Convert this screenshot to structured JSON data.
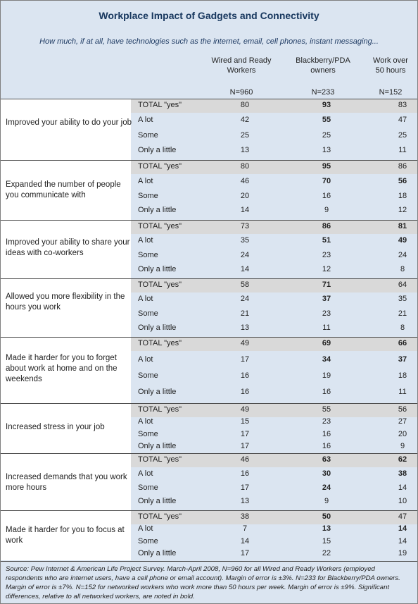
{
  "title": "Workplace Impact of Gadgets and Connectivity",
  "subtitle": "How much, if at all, have technologies such as the internet, email, cell phones, instant messaging...",
  "columns": [
    {
      "label_line1": "Wired and Ready",
      "label_line2": "Workers",
      "n": "N=960"
    },
    {
      "label_line1": "Blackberry/PDA",
      "label_line2": "owners",
      "n": "N=233"
    },
    {
      "label_line1": "Work over",
      "label_line2": "50 hours",
      "n": "N=152"
    }
  ],
  "rows": [
    {
      "question": "Improved your ability to do your job",
      "lines": [
        {
          "label": "TOTAL \"yes\"",
          "values": [
            "80",
            "93",
            "83"
          ],
          "bold": [
            false,
            true,
            false
          ]
        },
        {
          "label": "A lot",
          "values": [
            "42",
            "55",
            "47"
          ],
          "bold": [
            false,
            true,
            false
          ]
        },
        {
          "label": "Some",
          "values": [
            "25",
            "25",
            "25"
          ],
          "bold": [
            false,
            false,
            false
          ]
        },
        {
          "label": "Only a little",
          "values": [
            "13",
            "13",
            "11"
          ],
          "bold": [
            false,
            false,
            false
          ]
        }
      ]
    },
    {
      "question": "Expanded the number of people you communicate with",
      "lines": [
        {
          "label": "TOTAL \"yes\"",
          "values": [
            "80",
            "95",
            "86"
          ],
          "bold": [
            false,
            true,
            false
          ]
        },
        {
          "label": "A lot",
          "values": [
            "46",
            "70",
            "56"
          ],
          "bold": [
            false,
            true,
            true
          ]
        },
        {
          "label": "Some",
          "values": [
            "20",
            "16",
            "18"
          ],
          "bold": [
            false,
            false,
            false
          ]
        },
        {
          "label": "Only a little",
          "values": [
            "14",
            "9",
            "12"
          ],
          "bold": [
            false,
            false,
            false
          ]
        }
      ]
    },
    {
      "question": "Improved your ability to share your ideas with co-workers",
      "lines": [
        {
          "label": "TOTAL \"yes\"",
          "values": [
            "73",
            "86",
            "81"
          ],
          "bold": [
            false,
            true,
            true
          ]
        },
        {
          "label": "A lot",
          "values": [
            "35",
            "51",
            "49"
          ],
          "bold": [
            false,
            true,
            true
          ]
        },
        {
          "label": "Some",
          "values": [
            "24",
            "23",
            "24"
          ],
          "bold": [
            false,
            false,
            false
          ]
        },
        {
          "label": "Only a little",
          "values": [
            "14",
            "12",
            "8"
          ],
          "bold": [
            false,
            false,
            false
          ]
        }
      ]
    },
    {
      "question": "Allowed you more flexibility in the hours you work",
      "lines": [
        {
          "label": "TOTAL \"yes\"",
          "values": [
            "58",
            "71",
            "64"
          ],
          "bold": [
            false,
            true,
            false
          ]
        },
        {
          "label": "A lot",
          "values": [
            "24",
            "37",
            "35"
          ],
          "bold": [
            false,
            true,
            false
          ]
        },
        {
          "label": "Some",
          "values": [
            "21",
            "23",
            "21"
          ],
          "bold": [
            false,
            false,
            false
          ]
        },
        {
          "label": "Only a little",
          "values": [
            "13",
            "11",
            "8"
          ],
          "bold": [
            false,
            false,
            false
          ]
        }
      ]
    },
    {
      "question": "Made it harder for you to forget about work at home and on the weekends",
      "lines": [
        {
          "label": "TOTAL \"yes\"",
          "values": [
            "49",
            "69",
            "66"
          ],
          "bold": [
            false,
            true,
            true
          ]
        },
        {
          "label": "A lot",
          "values": [
            "17",
            "34",
            "37"
          ],
          "bold": [
            false,
            true,
            true
          ]
        },
        {
          "label": "Some",
          "values": [
            "16",
            "19",
            "18"
          ],
          "bold": [
            false,
            false,
            false
          ]
        },
        {
          "label": "Only a little",
          "values": [
            "16",
            "16",
            "11"
          ],
          "bold": [
            false,
            false,
            false
          ]
        }
      ]
    },
    {
      "question": "Increased stress in your job",
      "lines": [
        {
          "label": "TOTAL \"yes\"",
          "values": [
            "49",
            "55",
            "56"
          ],
          "bold": [
            false,
            false,
            false
          ]
        },
        {
          "label": "A lot",
          "values": [
            "15",
            "23",
            "27"
          ],
          "bold": [
            false,
            false,
            false
          ]
        },
        {
          "label": "Some",
          "values": [
            "17",
            "16",
            "20"
          ],
          "bold": [
            false,
            false,
            false
          ]
        },
        {
          "label": "Only a little",
          "values": [
            "17",
            "16",
            "9"
          ],
          "bold": [
            false,
            false,
            false
          ]
        }
      ]
    },
    {
      "question": "Increased demands that  you work more hours",
      "lines": [
        {
          "label": "TOTAL \"yes\"",
          "values": [
            "46",
            "63",
            "62"
          ],
          "bold": [
            false,
            true,
            true
          ]
        },
        {
          "label": "A lot",
          "values": [
            "16",
            "30",
            "38"
          ],
          "bold": [
            false,
            true,
            true
          ]
        },
        {
          "label": "Some",
          "values": [
            "17",
            "24",
            "14"
          ],
          "bold": [
            false,
            true,
            false
          ]
        },
        {
          "label": "Only a little",
          "values": [
            "13",
            "9",
            "10"
          ],
          "bold": [
            false,
            false,
            false
          ]
        }
      ]
    },
    {
      "question": "Made it harder for you to focus at work",
      "lines": [
        {
          "label": "TOTAL \"yes\"",
          "values": [
            "38",
            "50",
            "47"
          ],
          "bold": [
            false,
            true,
            false
          ]
        },
        {
          "label": "A lot",
          "values": [
            "7",
            "13",
            "14"
          ],
          "bold": [
            false,
            true,
            true
          ]
        },
        {
          "label": "Some",
          "values": [
            "14",
            "15",
            "14"
          ],
          "bold": [
            false,
            false,
            false
          ]
        },
        {
          "label": "Only a little",
          "values": [
            "17",
            "22",
            "19"
          ],
          "bold": [
            false,
            false,
            false
          ]
        }
      ]
    }
  ],
  "source": "Source: Pew Internet & American Life Project Survey. March-April 2008, N=960 for all Wired and Ready Workers (employed respondents who are internet users, have a cell phone or email account). Margin of error is ±3%. N=233 for Blackberry/PDA owners. Margin of error is ±7%. N=152 for networked workers who work more than 50 hours per week.  Margin of error is ±9%. Significant differences, relative to all networked workers, are noted in bold."
}
